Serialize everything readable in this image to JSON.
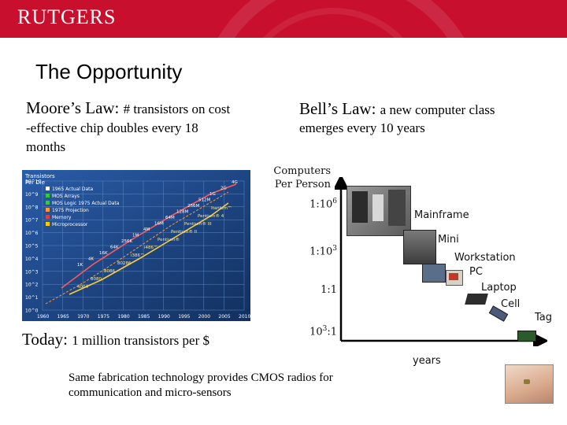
{
  "banner": {
    "logo_text": "RUTGERS"
  },
  "slide": {
    "title": "The Opportunity",
    "moore_heading": "Moore’s Law:",
    "moore_sub": "# transistors on cost",
    "moore_line2": "-effective chip doubles every 18",
    "moore_line3": "months",
    "bell_heading": "Bell’s Law:",
    "bell_sub": "a new computer class",
    "bell_line2": "emerges every 10 years",
    "today_heading": "Today:",
    "today_sub": "1 million transistors per $",
    "footer_line1": "Same fabrication technology provides CMOS radios for",
    "footer_line2": "communication and micro-sensors"
  },
  "moore_chart": {
    "ylabel_line1": "Transistors",
    "ylabel_line2": "Per Die",
    "legend": [
      "1965 Actual Data",
      "MOS Arrays",
      "MOS Logic 1975 Actual Data",
      "1975 Projection",
      "Memory",
      "Microprocessor"
    ],
    "legend_colors": [
      "#ffffff",
      "#33cc33",
      "#33cc33",
      "#ff9933",
      "#ff3333",
      "#ffcc00"
    ],
    "x_ticks": [
      "1960",
      "1965",
      "1970",
      "1975",
      "1980",
      "1985",
      "1990",
      "1995",
      "2000",
      "2005",
      "2010"
    ],
    "y_ticks": [
      "10^10",
      "10^9",
      "10^8",
      "10^7",
      "10^6",
      "10^5",
      "10^4",
      "10^3",
      "10^2",
      "10^1",
      "10^0"
    ],
    "memory_labels": [
      "1K",
      "4K",
      "16K",
      "64K",
      "256K",
      "1M",
      "4M",
      "16M",
      "64M",
      "128M",
      "256M",
      "512M",
      "1G",
      "2G",
      "4G"
    ],
    "cpu_labels": [
      "4004",
      "8080",
      "8086",
      "80286",
      "i386™",
      "i486™",
      "Pentium®",
      "Pentium® II",
      "Pentium® III",
      "Pentium® 4",
      "Itanium™"
    ]
  },
  "bell_chart": {
    "y_label_1": "Computers",
    "y_label_2": "Per Person",
    "y_ticks": [
      {
        "base": "1:10",
        "exp": "6"
      },
      {
        "base": "1:10",
        "exp": "3"
      },
      {
        "base": "1:1",
        "exp": ""
      },
      {
        "base": "10",
        "exp": "3",
        "suffix": ":1"
      }
    ],
    "x_label": "years",
    "classes": [
      "Mainframe",
      "Mini",
      "Workstation",
      "PC",
      "Laptop",
      "Cell",
      "Tag"
    ]
  }
}
